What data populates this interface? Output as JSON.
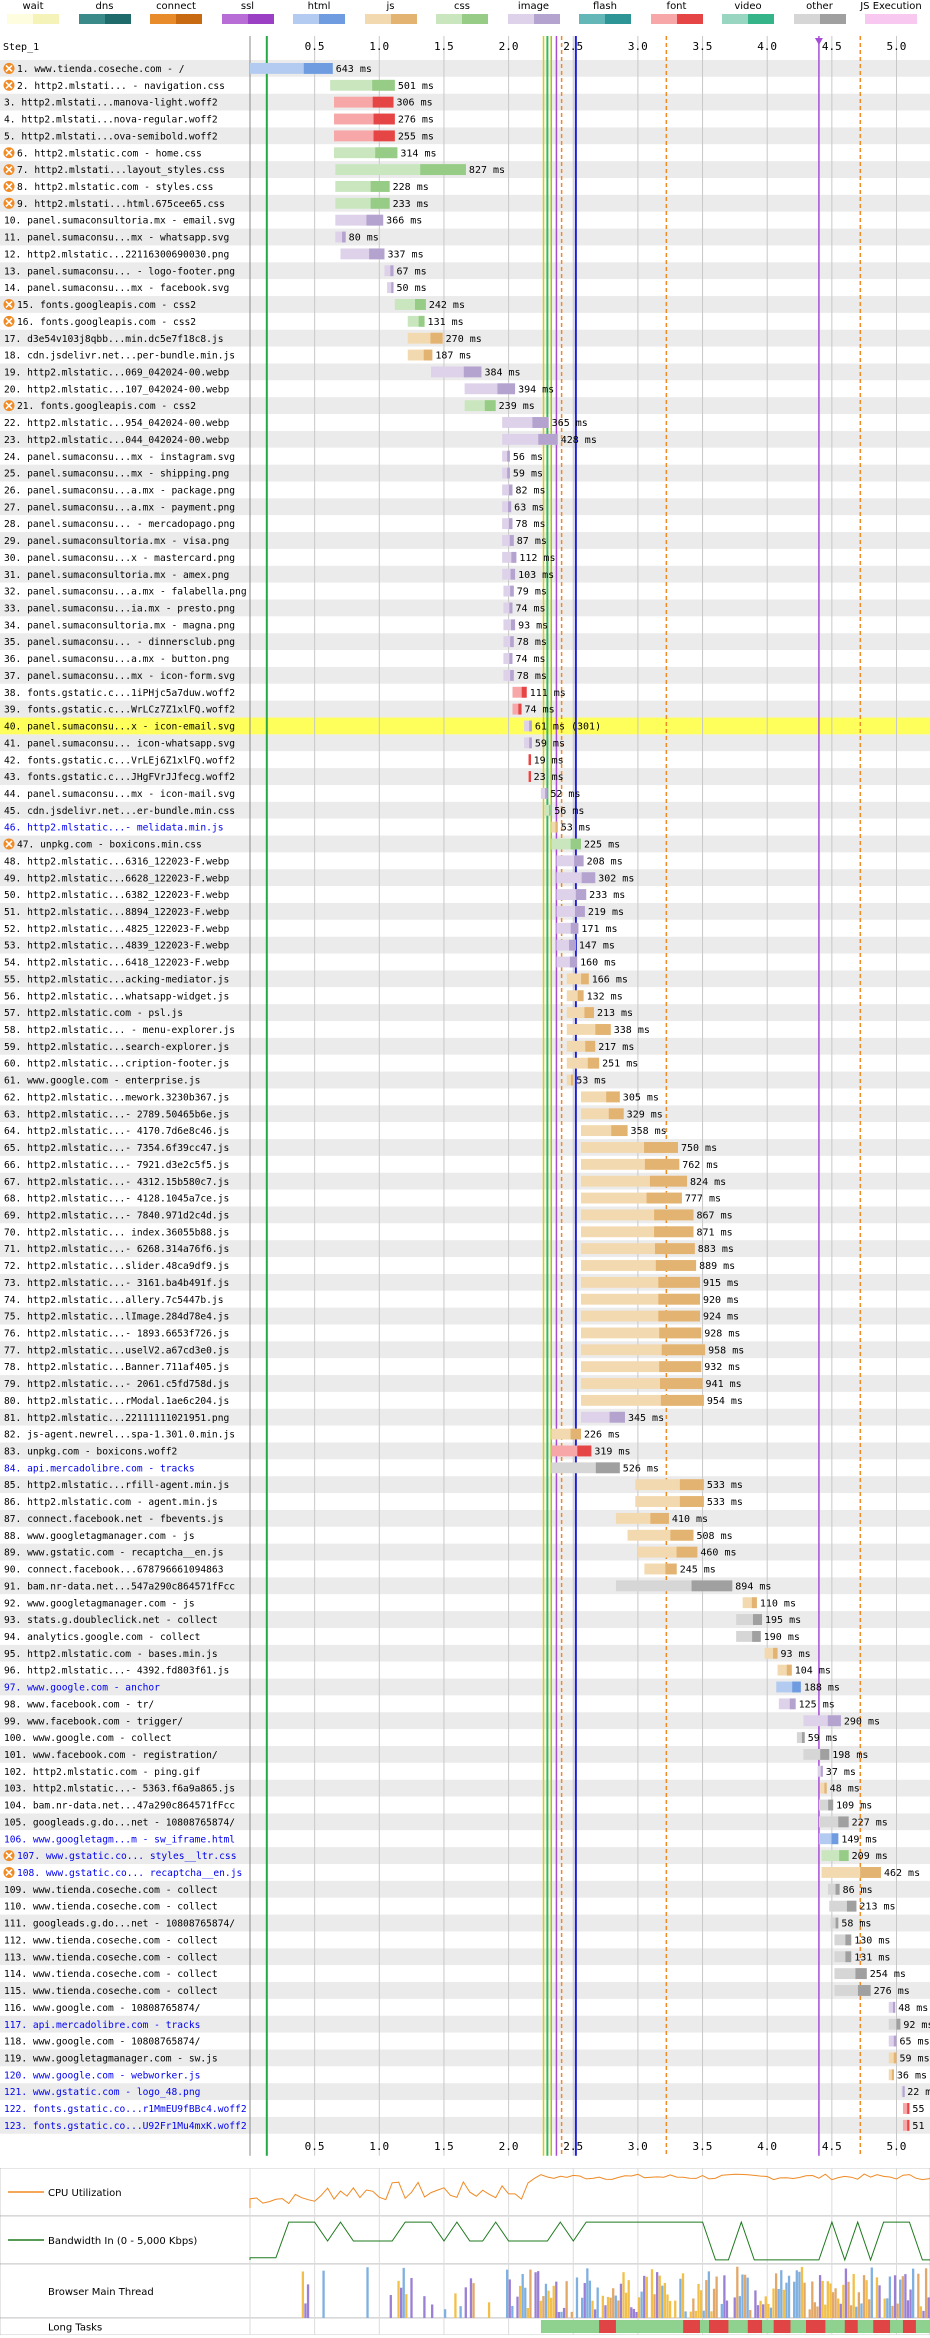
{
  "legend": [
    {
      "label": "wait",
      "colors": [
        "#fffde0",
        "#f6f3b8"
      ]
    },
    {
      "label": "dns",
      "colors": [
        "#3a8a8a",
        "#1f6b6b"
      ]
    },
    {
      "label": "connect",
      "colors": [
        "#e88b2a",
        "#c86a12"
      ]
    },
    {
      "label": "ssl",
      "colors": [
        "#b86dd6",
        "#9b3fc4"
      ]
    },
    {
      "label": "html",
      "colors": [
        "#b3cbf0",
        "#6f9ce0"
      ]
    },
    {
      "label": "js",
      "colors": [
        "#f3d9b0",
        "#e3b371"
      ]
    },
    {
      "label": "css",
      "colors": [
        "#c9e6bf",
        "#96cc85"
      ]
    },
    {
      "label": "image",
      "colors": [
        "#ddd2ea",
        "#b5a3cf"
      ]
    },
    {
      "label": "flash",
      "colors": [
        "#64b7b7",
        "#2d9595"
      ]
    },
    {
      "label": "font",
      "colors": [
        "#f7a7a7",
        "#e64545"
      ]
    },
    {
      "label": "video",
      "colors": [
        "#99d6c1",
        "#35b489"
      ]
    },
    {
      "label": "other",
      "colors": [
        "#d6d6d6",
        "#a0a0a0"
      ]
    },
    {
      "label": "JS Execution",
      "colors": [
        "#f9c8f0",
        "#f9c8f0"
      ]
    }
  ],
  "step_label": "Step_1",
  "axis": {
    "ticks": [
      "0.5",
      "1.0",
      "1.5",
      "2.0",
      "2.5",
      "3.0",
      "3.5",
      "4.0",
      "4.5",
      "5.0"
    ]
  },
  "requests": [
    {
      "n": "1. www.tienda.coseche.com - /",
      "s": 0,
      "e": 0.64,
      "t": "html",
      "ms": "643 ms",
      "b": 1
    },
    {
      "n": "2. http2.mlstati... - navigation.css",
      "s": 0.62,
      "e": 1.12,
      "t": "css",
      "ms": "501 ms",
      "b": 1
    },
    {
      "n": "3. http2.mlstati...manova-light.woff2",
      "s": 0.65,
      "e": 1.11,
      "t": "font",
      "ms": "306 ms"
    },
    {
      "n": "4. http2.mlstati...nova-regular.woff2",
      "s": 0.65,
      "e": 1.12,
      "t": "font",
      "ms": "276 ms"
    },
    {
      "n": "5. http2.mlstati...ova-semibold.woff2",
      "s": 0.65,
      "e": 1.12,
      "t": "font",
      "ms": "255 ms"
    },
    {
      "n": "6. http2.mlstatic.com - home.css",
      "s": 0.65,
      "e": 1.14,
      "t": "css",
      "ms": "314 ms",
      "b": 1
    },
    {
      "n": "7. http2.mlstati...layout_styles.css",
      "s": 0.66,
      "e": 1.67,
      "t": "css",
      "ms": "827 ms",
      "b": 1
    },
    {
      "n": "8. http2.mlstatic.com - styles.css",
      "s": 0.66,
      "e": 1.08,
      "t": "css",
      "ms": "228 ms",
      "b": 1
    },
    {
      "n": "9. http2.mlstati...html.675cee65.css",
      "s": 0.66,
      "e": 1.08,
      "t": "css",
      "ms": "233 ms",
      "b": 1
    },
    {
      "n": "10. panel.sumaconsultoria.mx - email.svg",
      "s": 0.66,
      "e": 1.03,
      "t": "image",
      "ms": "366 ms"
    },
    {
      "n": "11. panel.sumaconsu...mx - whatsapp.svg",
      "s": 0.66,
      "e": 0.74,
      "t": "image",
      "ms": "80 ms"
    },
    {
      "n": "12. http2.mlstatic...22116300690030.png",
      "s": 0.7,
      "e": 1.04,
      "t": "image",
      "ms": "337 ms"
    },
    {
      "n": "13. panel.sumaconsu... - logo-footer.png",
      "s": 1.04,
      "e": 1.11,
      "t": "image",
      "ms": "67 ms"
    },
    {
      "n": "14. panel.sumaconsu...mx - facebook.svg",
      "s": 1.06,
      "e": 1.11,
      "t": "image",
      "ms": "50 ms"
    },
    {
      "n": "15. fonts.googleapis.com - css2",
      "s": 1.12,
      "e": 1.36,
      "t": "css",
      "ms": "242 ms",
      "b": 1
    },
    {
      "n": "16. fonts.googleapis.com - css2",
      "s": 1.22,
      "e": 1.35,
      "t": "css",
      "ms": "131 ms",
      "b": 1
    },
    {
      "n": "17. d3e54v103j8qbb...min.dc5e7f18c8.js",
      "s": 1.22,
      "e": 1.49,
      "t": "js",
      "ms": "270 ms"
    },
    {
      "n": "18. cdn.jsdelivr.net...per-bundle.min.js",
      "s": 1.22,
      "e": 1.41,
      "t": "js",
      "ms": "187 ms"
    },
    {
      "n": "19. http2.mlstatic...069_042024-00.webp",
      "s": 1.4,
      "e": 1.79,
      "t": "image",
      "ms": "384 ms"
    },
    {
      "n": "20. http2.mlstatic...107_042024-00.webp",
      "s": 1.66,
      "e": 2.05,
      "t": "image",
      "ms": "394 ms"
    },
    {
      "n": "21. fonts.googleapis.com - css2",
      "s": 1.66,
      "e": 1.9,
      "t": "css",
      "ms": "239 ms",
      "b": 1
    },
    {
      "n": "22. http2.mlstatic...954_042024-00.webp",
      "s": 1.95,
      "e": 2.31,
      "t": "image",
      "ms": "365 ms"
    },
    {
      "n": "23. http2.mlstatic...044_042024-00.webp",
      "s": 1.95,
      "e": 2.38,
      "t": "image",
      "ms": "428 ms"
    },
    {
      "n": "24. panel.sumaconsu...mx - instagram.svg",
      "s": 1.95,
      "e": 2.01,
      "t": "image",
      "ms": "56 ms"
    },
    {
      "n": "25. panel.sumaconsu...mx - shipping.png",
      "s": 1.95,
      "e": 2.01,
      "t": "image",
      "ms": "59 ms"
    },
    {
      "n": "26. panel.sumaconsu...a.mx - package.png",
      "s": 1.95,
      "e": 2.03,
      "t": "image",
      "ms": "82 ms"
    },
    {
      "n": "27. panel.sumaconsu...a.mx - payment.png",
      "s": 1.95,
      "e": 2.02,
      "t": "image",
      "ms": "63 ms"
    },
    {
      "n": "28. panel.sumaconsu... - mercadopago.png",
      "s": 1.95,
      "e": 2.03,
      "t": "image",
      "ms": "78 ms"
    },
    {
      "n": "29. panel.sumaconsultoria.mx - visa.png",
      "s": 1.95,
      "e": 2.04,
      "t": "image",
      "ms": "87 ms"
    },
    {
      "n": "30. panel.sumaconsu...x - mastercard.png",
      "s": 1.95,
      "e": 2.06,
      "t": "image",
      "ms": "112 ms"
    },
    {
      "n": "31. panel.sumaconsultoria.mx - amex.png",
      "s": 1.95,
      "e": 2.05,
      "t": "image",
      "ms": "103 ms"
    },
    {
      "n": "32. panel.sumaconsu...a.mx - falabella.png",
      "s": 1.96,
      "e": 2.04,
      "t": "image",
      "ms": "79 ms"
    },
    {
      "n": "33. panel.sumaconsu...ia.mx - presto.png",
      "s": 1.96,
      "e": 2.03,
      "t": "image",
      "ms": "74 ms"
    },
    {
      "n": "34. panel.sumaconsultoria.mx - magna.png",
      "s": 1.96,
      "e": 2.05,
      "t": "image",
      "ms": "93 ms"
    },
    {
      "n": "35. panel.sumaconsu... - dinnersclub.png",
      "s": 1.96,
      "e": 2.04,
      "t": "image",
      "ms": "78 ms"
    },
    {
      "n": "36. panel.sumaconsu...a.mx - button.png",
      "s": 1.96,
      "e": 2.03,
      "t": "image",
      "ms": "74 ms"
    },
    {
      "n": "37. panel.sumaconsu...mx - icon-form.svg",
      "s": 1.96,
      "e": 2.04,
      "t": "image",
      "ms": "78 ms"
    },
    {
      "n": "38. fonts.gstatic.c...1iPHjc5a7duw.woff2",
      "s": 2.03,
      "e": 2.14,
      "t": "font",
      "ms": "111 ms"
    },
    {
      "n": "39. fonts.gstatic.c...WrLCz7Z1xlFQ.woff2",
      "s": 2.03,
      "e": 2.1,
      "t": "font",
      "ms": "74 ms"
    },
    {
      "n": "40. panel.sumaconsu...x - icon-email.svg",
      "s": 2.12,
      "e": 2.18,
      "t": "image",
      "ms": "61 ms (301)",
      "hl": 1
    },
    {
      "n": "41. panel.sumaconsu... icon-whatsapp.svg",
      "s": 2.12,
      "e": 2.18,
      "t": "image",
      "ms": "59 ms"
    },
    {
      "n": "42. fonts.gstatic.c...VrLEj6Z1xlFQ.woff2",
      "s": 2.15,
      "e": 2.17,
      "t": "font",
      "ms": "19 ms"
    },
    {
      "n": "43. fonts.gstatic.c...JHgFVrJJfecg.woff2",
      "s": 2.15,
      "e": 2.17,
      "t": "font",
      "ms": "23 ms"
    },
    {
      "n": "44. panel.sumaconsu...mx - icon-mail.svg",
      "s": 2.25,
      "e": 2.3,
      "t": "image",
      "ms": "52 ms"
    },
    {
      "n": "45. cdn.jsdelivr.net...er-bundle.min.css",
      "s": 2.28,
      "e": 2.33,
      "t": "css",
      "ms": "56 ms"
    },
    {
      "n": "46. http2.mlstatic...- melidata.min.js",
      "s": 2.33,
      "e": 2.38,
      "t": "js",
      "ms": "53 ms",
      "link": 1
    },
    {
      "n": "47. unpkg.com - boxicons.min.css",
      "s": 2.33,
      "e": 2.56,
      "t": "css",
      "ms": "225 ms",
      "b": 1
    },
    {
      "n": "48. http2.mlstatic...6316_122023-F.webp",
      "s": 2.37,
      "e": 2.58,
      "t": "image",
      "ms": "208 ms"
    },
    {
      "n": "49. http2.mlstatic...6628_122023-F.webp",
      "s": 2.37,
      "e": 2.67,
      "t": "image",
      "ms": "302 ms"
    },
    {
      "n": "50. http2.mlstatic...6382_122023-F.webp",
      "s": 2.37,
      "e": 2.6,
      "t": "image",
      "ms": "233 ms"
    },
    {
      "n": "51. http2.mlstatic...8894_122023-F.webp",
      "s": 2.37,
      "e": 2.59,
      "t": "image",
      "ms": "219 ms"
    },
    {
      "n": "52. http2.mlstatic...4825_122023-F.webp",
      "s": 2.37,
      "e": 2.54,
      "t": "image",
      "ms": "171 ms"
    },
    {
      "n": "53. http2.mlstatic...4839_122023-F.webp",
      "s": 2.37,
      "e": 2.52,
      "t": "image",
      "ms": "147 ms"
    },
    {
      "n": "54. http2.mlstatic...6418_122023-F.webp",
      "s": 2.37,
      "e": 2.53,
      "t": "image",
      "ms": "160 ms"
    },
    {
      "n": "55. http2.mlstatic...acking-mediator.js",
      "s": 2.45,
      "e": 2.62,
      "t": "js",
      "ms": "166 ms"
    },
    {
      "n": "56. http2.mlstatic...whatsapp-widget.js",
      "s": 2.45,
      "e": 2.58,
      "t": "js",
      "ms": "132 ms"
    },
    {
      "n": "57. http2.mlstatic.com - psl.js",
      "s": 2.45,
      "e": 2.66,
      "t": "js",
      "ms": "213 ms"
    },
    {
      "n": "58. http2.mlstatic... - menu-explorer.js",
      "s": 2.45,
      "e": 2.79,
      "t": "js",
      "ms": "338 ms"
    },
    {
      "n": "59. http2.mlstatic...search-explorer.js",
      "s": 2.45,
      "e": 2.67,
      "t": "js",
      "ms": "217 ms"
    },
    {
      "n": "60. http2.mlstatic...cription-footer.js",
      "s": 2.45,
      "e": 2.7,
      "t": "js",
      "ms": "251 ms"
    },
    {
      "n": "61. www.google.com - enterprise.js",
      "s": 2.45,
      "e": 2.5,
      "t": "js",
      "ms": "53 ms"
    },
    {
      "n": "62. http2.mlstatic...mework.3230b367.js",
      "s": 2.56,
      "e": 2.86,
      "t": "js",
      "ms": "305 ms"
    },
    {
      "n": "63. http2.mlstatic...- 2789.50465b6e.js",
      "s": 2.56,
      "e": 2.89,
      "t": "js",
      "ms": "329 ms"
    },
    {
      "n": "64. http2.mlstatic...- 4170.7d6e8c46.js",
      "s": 2.56,
      "e": 2.92,
      "t": "js",
      "ms": "358 ms"
    },
    {
      "n": "65. http2.mlstatic...- 7354.6f39cc47.js",
      "s": 2.56,
      "e": 3.31,
      "t": "js",
      "ms": "750 ms"
    },
    {
      "n": "66. http2.mlstatic...- 7921.d3e2c5f5.js",
      "s": 2.56,
      "e": 3.32,
      "t": "js",
      "ms": "762 ms"
    },
    {
      "n": "67. http2.mlstatic...- 4312.15b580c7.js",
      "s": 2.56,
      "e": 3.38,
      "t": "js",
      "ms": "824 ms"
    },
    {
      "n": "68. http2.mlstatic...- 4128.1045a7ce.js",
      "s": 2.56,
      "e": 3.34,
      "t": "js",
      "ms": "777 ms"
    },
    {
      "n": "69. http2.mlstatic...- 7840.971d2c4d.js",
      "s": 2.56,
      "e": 3.43,
      "t": "js",
      "ms": "867 ms"
    },
    {
      "n": "70. http2.mlstatic... index.36055b88.js",
      "s": 2.56,
      "e": 3.43,
      "t": "js",
      "ms": "871 ms"
    },
    {
      "n": "71. http2.mlstatic...- 6268.314a76f6.js",
      "s": 2.56,
      "e": 3.44,
      "t": "js",
      "ms": "883 ms"
    },
    {
      "n": "72. http2.mlstatic...slider.48ca9df9.js",
      "s": 2.56,
      "e": 3.45,
      "t": "js",
      "ms": "889 ms"
    },
    {
      "n": "73. http2.mlstatic...- 3161.ba4b491f.js",
      "s": 2.56,
      "e": 3.48,
      "t": "js",
      "ms": "915 ms"
    },
    {
      "n": "74. http2.mlstatic...allery.7c5447b.js",
      "s": 2.56,
      "e": 3.48,
      "t": "js",
      "ms": "920 ms"
    },
    {
      "n": "75. http2.mlstatic...lImage.284d78e4.js",
      "s": 2.56,
      "e": 3.48,
      "t": "js",
      "ms": "924 ms"
    },
    {
      "n": "76. http2.mlstatic...- 1893.6653f726.js",
      "s": 2.56,
      "e": 3.49,
      "t": "js",
      "ms": "928 ms"
    },
    {
      "n": "77. http2.mlstatic...uselV2.a67cd3e0.js",
      "s": 2.56,
      "e": 3.52,
      "t": "js",
      "ms": "958 ms"
    },
    {
      "n": "78. http2.mlstatic...Banner.711af405.js",
      "s": 2.56,
      "e": 3.49,
      "t": "js",
      "ms": "932 ms"
    },
    {
      "n": "79. http2.mlstatic...- 2061.c5fd758d.js",
      "s": 2.56,
      "e": 3.5,
      "t": "js",
      "ms": "941 ms"
    },
    {
      "n": "80. http2.mlstatic...rModal.1ae6c204.js",
      "s": 2.56,
      "e": 3.51,
      "t": "js",
      "ms": "954 ms"
    },
    {
      "n": "81. http2.mlstatic...22111111021951.png",
      "s": 2.56,
      "e": 2.9,
      "t": "image",
      "ms": "345 ms"
    },
    {
      "n": "82. js-agent.newrel...spa-1.301.0.min.js",
      "s": 2.33,
      "e": 2.56,
      "t": "js",
      "ms": "226 ms"
    },
    {
      "n": "83. unpkg.com - boxicons.woff2",
      "s": 2.33,
      "e": 2.64,
      "t": "font",
      "ms": "319 ms"
    },
    {
      "n": "84. api.mercadolibre.com - tracks",
      "s": 2.33,
      "e": 2.86,
      "t": "other",
      "ms": "526 ms",
      "link": 1
    },
    {
      "n": "85. http2.mlstatic...rfill-agent.min.js",
      "s": 2.98,
      "e": 3.51,
      "t": "js",
      "ms": "533 ms"
    },
    {
      "n": "86. http2.mlstatic.com - agent.min.js",
      "s": 2.98,
      "e": 3.51,
      "t": "js",
      "ms": "533 ms"
    },
    {
      "n": "87. connect.facebook.net - fbevents.js",
      "s": 2.83,
      "e": 3.24,
      "t": "js",
      "ms": "410 ms"
    },
    {
      "n": "88. www.googletagmanager.com - js",
      "s": 2.92,
      "e": 3.43,
      "t": "js",
      "ms": "508 ms"
    },
    {
      "n": "89. www.gstatic.com - recaptcha__en.js",
      "s": 3.0,
      "e": 3.46,
      "t": "js",
      "ms": "460 ms"
    },
    {
      "n": "90. connect.facebook...678796661094863",
      "s": 3.05,
      "e": 3.3,
      "t": "js",
      "ms": "245 ms"
    },
    {
      "n": "91. bam.nr-data.net...547a290c864571fFcc",
      "s": 2.83,
      "e": 3.73,
      "t": "other",
      "ms": "894 ms"
    },
    {
      "n": "92. www.googletagmanager.com - js",
      "s": 3.81,
      "e": 3.92,
      "t": "js",
      "ms": "110 ms"
    },
    {
      "n": "93. stats.g.doubleclick.net - collect",
      "s": 3.76,
      "e": 3.96,
      "t": "other",
      "ms": "195 ms"
    },
    {
      "n": "94. analytics.google.com - collect",
      "s": 3.76,
      "e": 3.95,
      "t": "other",
      "ms": "190 ms"
    },
    {
      "n": "95. http2.mlstatic.com - bases.min.js",
      "s": 3.98,
      "e": 4.08,
      "t": "js",
      "ms": "93 ms"
    },
    {
      "n": "96. http2.mlstatic...- 4392.fd803f61.js",
      "s": 4.08,
      "e": 4.19,
      "t": "js",
      "ms": "104 ms"
    },
    {
      "n": "97. www.google.com - anchor",
      "s": 4.07,
      "e": 4.26,
      "t": "html",
      "ms": "188 ms",
      "link": 1
    },
    {
      "n": "98. www.facebook.com - tr/",
      "s": 4.09,
      "e": 4.22,
      "t": "image",
      "ms": "125 ms"
    },
    {
      "n": "99. www.facebook.com - trigger/",
      "s": 4.28,
      "e": 4.57,
      "t": "image",
      "ms": "290 ms"
    },
    {
      "n": "100. www.google.com - collect",
      "s": 4.23,
      "e": 4.29,
      "t": "other",
      "ms": "59 ms"
    },
    {
      "n": "101. www.facebook.com - registration/",
      "s": 4.28,
      "e": 4.48,
      "t": "other",
      "ms": "198 ms"
    },
    {
      "n": "102. http2.mlstatic.com - ping.gif",
      "s": 4.39,
      "e": 4.43,
      "t": "image",
      "ms": "37 ms"
    },
    {
      "n": "103. http2.mlstatic...- 5363.f6a9a865.js",
      "s": 4.41,
      "e": 4.46,
      "t": "js",
      "ms": "48 ms"
    },
    {
      "n": "104. bam.nr-data.net...47a290c864571fFcc",
      "s": 4.4,
      "e": 4.51,
      "t": "other",
      "ms": "109 ms"
    },
    {
      "n": "105. googleads.g.do...net - 10808765874/",
      "s": 4.4,
      "e": 4.63,
      "t": "other",
      "ms": "227 ms"
    },
    {
      "n": "106. www.googletagm...m - sw_iframe.html",
      "s": 4.4,
      "e": 4.55,
      "t": "html",
      "ms": "149 ms",
      "link": 1
    },
    {
      "n": "107. www.gstatic.co... styles__ltr.css",
      "s": 4.42,
      "e": 4.63,
      "t": "css",
      "ms": "209 ms",
      "link": 1,
      "b": 1
    },
    {
      "n": "108. www.gstatic.co... recaptcha__en.js",
      "s": 4.42,
      "e": 4.88,
      "t": "js",
      "ms": "462 ms",
      "link": 1,
      "b": 1
    },
    {
      "n": "109. www.tienda.coseche.com - collect",
      "s": 4.47,
      "e": 4.56,
      "t": "other",
      "ms": "86 ms"
    },
    {
      "n": "110. www.tienda.coseche.com - collect",
      "s": 4.48,
      "e": 4.69,
      "t": "other",
      "ms": "213 ms"
    },
    {
      "n": "111. googleads.g.do...net - 10808765874/",
      "s": 4.49,
      "e": 4.55,
      "t": "other",
      "ms": "58 ms"
    },
    {
      "n": "112. www.tienda.coseche.com - collect",
      "s": 4.52,
      "e": 4.65,
      "t": "other",
      "ms": "130 ms"
    },
    {
      "n": "113. www.tienda.coseche.com - collect",
      "s": 4.52,
      "e": 4.65,
      "t": "other",
      "ms": "131 ms"
    },
    {
      "n": "114. www.tienda.coseche.com - collect",
      "s": 4.52,
      "e": 4.77,
      "t": "other",
      "ms": "254 ms"
    },
    {
      "n": "115. www.tienda.coseche.com - collect",
      "s": 4.52,
      "e": 4.8,
      "t": "other",
      "ms": "276 ms"
    },
    {
      "n": "116. www.google.com - 10808765874/",
      "s": 4.94,
      "e": 4.99,
      "t": "image",
      "ms": "48 ms"
    },
    {
      "n": "117. api.mercadolibre.com - tracks",
      "s": 4.94,
      "e": 5.03,
      "t": "other",
      "ms": "92 ms",
      "link": 1
    },
    {
      "n": "118. www.google.com - 10808765874/",
      "s": 4.94,
      "e": 5.0,
      "t": "image",
      "ms": "65 ms"
    },
    {
      "n": "119. www.googletagmanager.com - sw.js",
      "s": 4.94,
      "e": 5.0,
      "t": "js",
      "ms": "59 ms"
    },
    {
      "n": "120. www.google.com - webworker.js",
      "s": 4.94,
      "e": 4.98,
      "t": "js",
      "ms": "36 ms",
      "link": 1
    },
    {
      "n": "121. www.gstatic.com - logo_48.png",
      "s": 5.04,
      "e": 5.06,
      "t": "image",
      "ms": "22 ms",
      "link": 1
    },
    {
      "n": "122. fonts.gstatic.co...r1MmEU9fBBc4.woff2",
      "s": 5.05,
      "e": 5.1,
      "t": "font",
      "ms": "55 ms",
      "link": 1
    },
    {
      "n": "123. fonts.gstatic.co...U92Fr1Mu4mxK.woff2",
      "s": 5.05,
      "e": 5.1,
      "t": "font",
      "ms": "51 ms",
      "link": 1
    }
  ],
  "bottom_panels": {
    "cpu": "CPU Utilization",
    "bandwidth": "Bandwidth In (0 - 5,000 Kbps)",
    "main_thread": "Browser Main Thread",
    "long_tasks": "Long Tasks"
  }
}
